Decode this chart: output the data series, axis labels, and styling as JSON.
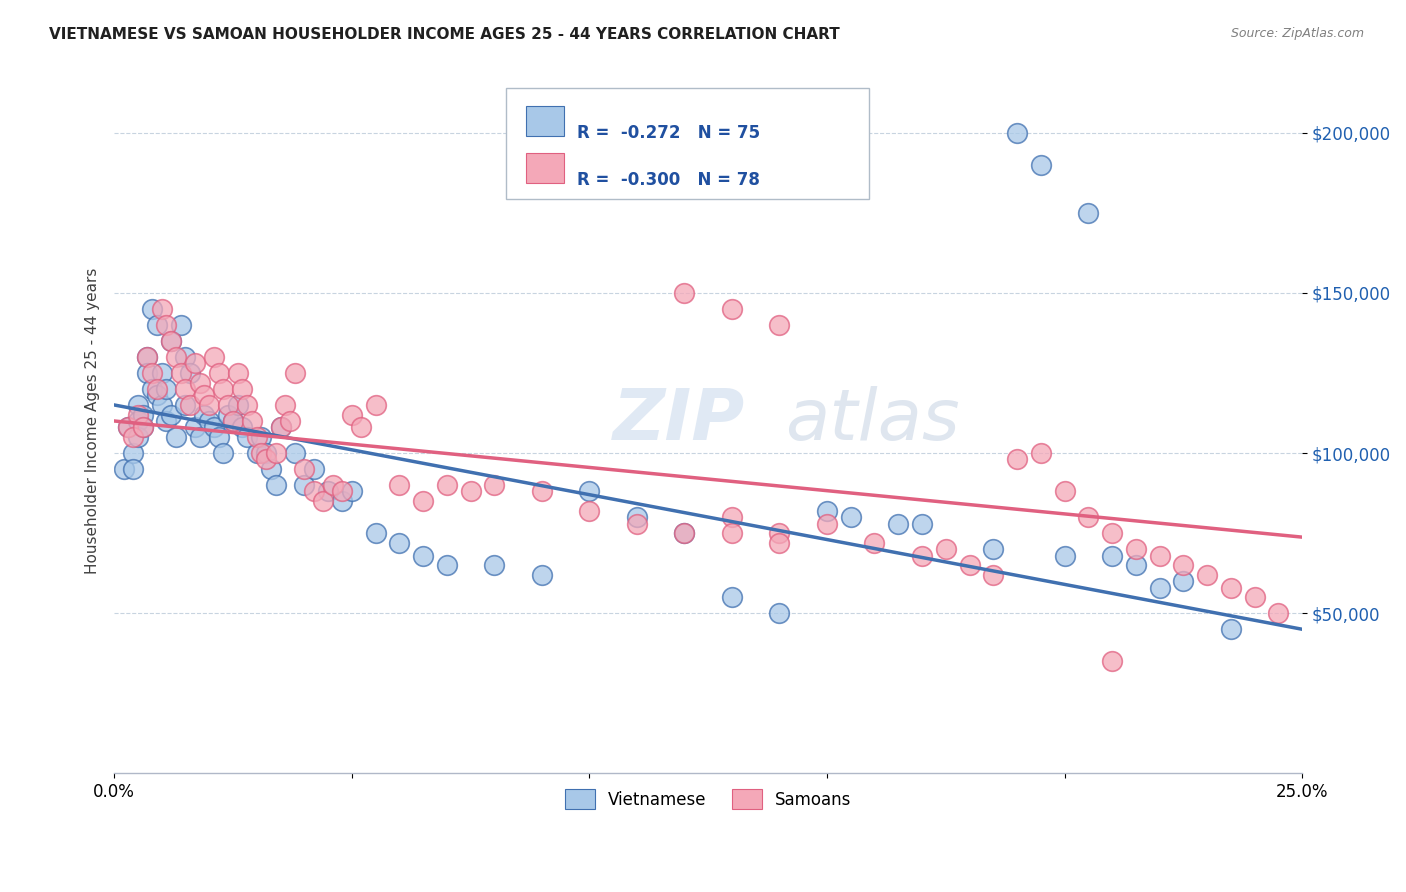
{
  "title": "VIETNAMESE VS SAMOAN HOUSEHOLDER INCOME AGES 25 - 44 YEARS CORRELATION CHART",
  "source": "Source: ZipAtlas.com",
  "ylabel": "Householder Income Ages 25 - 44 years",
  "xlim": [
    0.0,
    0.25
  ],
  "ylim": [
    0,
    220000
  ],
  "yticks": [
    50000,
    100000,
    150000,
    200000
  ],
  "ytick_labels": [
    "$50,000",
    "$100,000",
    "$150,000",
    "$200,000"
  ],
  "xticks": [
    0.0,
    0.05,
    0.1,
    0.15,
    0.2,
    0.25
  ],
  "xtick_labels": [
    "0.0%",
    "",
    "",
    "",
    "",
    "25.0%"
  ],
  "vietnamese_R": -0.272,
  "vietnamese_N": 75,
  "samoan_R": -0.3,
  "samoan_N": 78,
  "blue_color": "#a8c8e8",
  "pink_color": "#f4a8b8",
  "blue_line_color": "#4070b0",
  "pink_line_color": "#e06080",
  "legend_text_color": "#2050a0",
  "viet_intercept": 115000,
  "viet_slope": -280000,
  "samoan_intercept": 110000,
  "samoan_slope": -145000,
  "vietnamese_x": [
    0.002,
    0.003,
    0.004,
    0.004,
    0.005,
    0.005,
    0.005,
    0.006,
    0.006,
    0.007,
    0.007,
    0.008,
    0.008,
    0.009,
    0.009,
    0.01,
    0.01,
    0.011,
    0.011,
    0.012,
    0.012,
    0.013,
    0.014,
    0.015,
    0.015,
    0.016,
    0.017,
    0.018,
    0.019,
    0.02,
    0.021,
    0.022,
    0.023,
    0.024,
    0.025,
    0.026,
    0.027,
    0.028,
    0.03,
    0.031,
    0.032,
    0.033,
    0.034,
    0.035,
    0.038,
    0.04,
    0.042,
    0.045,
    0.048,
    0.05,
    0.055,
    0.06,
    0.065,
    0.07,
    0.08,
    0.09,
    0.1,
    0.11,
    0.12,
    0.13,
    0.14,
    0.15,
    0.155,
    0.165,
    0.17,
    0.185,
    0.19,
    0.195,
    0.2,
    0.205,
    0.21,
    0.215,
    0.22,
    0.225,
    0.235
  ],
  "vietnamese_y": [
    95000,
    108000,
    100000,
    95000,
    115000,
    110000,
    105000,
    112000,
    108000,
    130000,
    125000,
    120000,
    145000,
    140000,
    118000,
    125000,
    115000,
    120000,
    110000,
    135000,
    112000,
    105000,
    140000,
    130000,
    115000,
    125000,
    108000,
    105000,
    112000,
    110000,
    108000,
    105000,
    100000,
    112000,
    110000,
    115000,
    108000,
    105000,
    100000,
    105000,
    100000,
    95000,
    90000,
    108000,
    100000,
    90000,
    95000,
    88000,
    85000,
    88000,
    75000,
    72000,
    68000,
    65000,
    65000,
    62000,
    88000,
    80000,
    75000,
    55000,
    50000,
    82000,
    80000,
    78000,
    78000,
    70000,
    200000,
    190000,
    68000,
    175000,
    68000,
    65000,
    58000,
    60000,
    45000
  ],
  "samoan_x": [
    0.003,
    0.004,
    0.005,
    0.006,
    0.007,
    0.008,
    0.009,
    0.01,
    0.011,
    0.012,
    0.013,
    0.014,
    0.015,
    0.016,
    0.017,
    0.018,
    0.019,
    0.02,
    0.021,
    0.022,
    0.023,
    0.024,
    0.025,
    0.026,
    0.027,
    0.028,
    0.029,
    0.03,
    0.031,
    0.032,
    0.034,
    0.035,
    0.036,
    0.037,
    0.038,
    0.04,
    0.042,
    0.044,
    0.046,
    0.048,
    0.05,
    0.052,
    0.055,
    0.06,
    0.065,
    0.07,
    0.075,
    0.08,
    0.09,
    0.1,
    0.11,
    0.12,
    0.13,
    0.14,
    0.15,
    0.16,
    0.17,
    0.175,
    0.18,
    0.185,
    0.19,
    0.195,
    0.2,
    0.205,
    0.21,
    0.215,
    0.22,
    0.225,
    0.23,
    0.235,
    0.24,
    0.245,
    0.12,
    0.13,
    0.14,
    0.21,
    0.13,
    0.14
  ],
  "samoan_y": [
    108000,
    105000,
    112000,
    108000,
    130000,
    125000,
    120000,
    145000,
    140000,
    135000,
    130000,
    125000,
    120000,
    115000,
    128000,
    122000,
    118000,
    115000,
    130000,
    125000,
    120000,
    115000,
    110000,
    125000,
    120000,
    115000,
    110000,
    105000,
    100000,
    98000,
    100000,
    108000,
    115000,
    110000,
    125000,
    95000,
    88000,
    85000,
    90000,
    88000,
    112000,
    108000,
    115000,
    90000,
    85000,
    90000,
    88000,
    90000,
    88000,
    82000,
    78000,
    75000,
    80000,
    75000,
    78000,
    72000,
    68000,
    70000,
    65000,
    62000,
    98000,
    100000,
    88000,
    80000,
    75000,
    70000,
    68000,
    65000,
    62000,
    58000,
    55000,
    50000,
    150000,
    145000,
    140000,
    35000,
    75000,
    72000
  ]
}
